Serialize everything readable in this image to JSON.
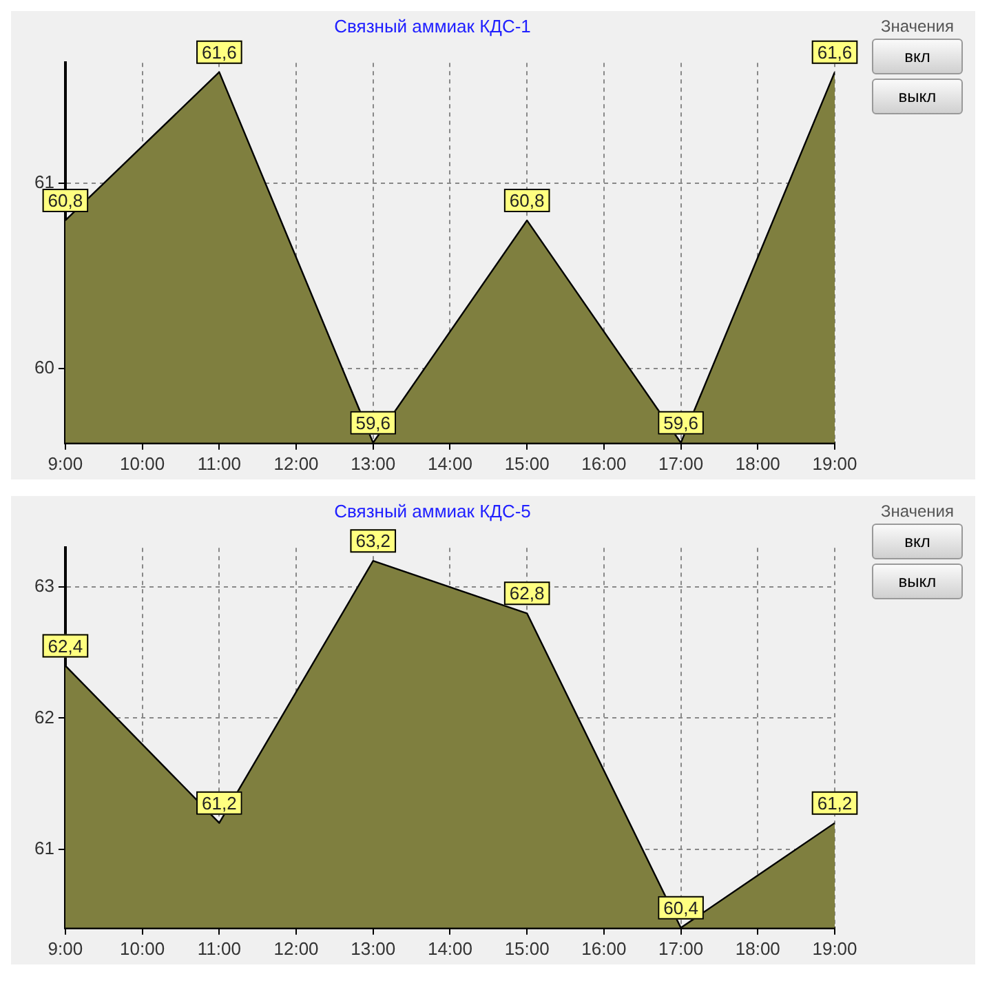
{
  "chart_data": [
    {
      "type": "area",
      "title": "Связный аммиак КДС-1",
      "x": [
        9,
        11,
        13,
        15,
        17,
        19
      ],
      "xlim": [
        9,
        19
      ],
      "xticks": [
        {
          "value": 9,
          "label": "9:00"
        },
        {
          "value": 10,
          "label": "10:00"
        },
        {
          "value": 11,
          "label": "11:00"
        },
        {
          "value": 12,
          "label": "12:00"
        },
        {
          "value": 13,
          "label": "13:00"
        },
        {
          "value": 14,
          "label": "14:00"
        },
        {
          "value": 15,
          "label": "15:00"
        },
        {
          "value": 16,
          "label": "16:00"
        },
        {
          "value": 17,
          "label": "17:00"
        },
        {
          "value": 18,
          "label": "18:00"
        },
        {
          "value": 19,
          "label": "19:00"
        }
      ],
      "ylim": [
        59.6,
        61.65
      ],
      "yticks": [
        60,
        61
      ],
      "grid": true,
      "legend": false,
      "marker": "none",
      "series": [
        {
          "color": "#7f7f3f",
          "values": [
            60.8,
            61.6,
            59.6,
            60.8,
            59.6,
            61.6
          ],
          "value_labels": [
            "60,8",
            "61,6",
            "59,6",
            "60,8",
            "59,6",
            "61,6"
          ]
        }
      ],
      "annotations": [
        "Значения",
        "вкл",
        "выкл"
      ]
    },
    {
      "type": "area",
      "title": "Связный аммиак КДС-5",
      "x": [
        9,
        11,
        13,
        15,
        17,
        19
      ],
      "xlim": [
        9,
        19
      ],
      "xticks": [
        {
          "value": 9,
          "label": "9:00"
        },
        {
          "value": 10,
          "label": "10:00"
        },
        {
          "value": 11,
          "label": "11:00"
        },
        {
          "value": 12,
          "label": "12:00"
        },
        {
          "value": 13,
          "label": "13:00"
        },
        {
          "value": 14,
          "label": "14:00"
        },
        {
          "value": 15,
          "label": "15:00"
        },
        {
          "value": 16,
          "label": "16:00"
        },
        {
          "value": 17,
          "label": "17:00"
        },
        {
          "value": 18,
          "label": "18:00"
        },
        {
          "value": 19,
          "label": "19:00"
        }
      ],
      "ylim": [
        60.4,
        63.3
      ],
      "yticks": [
        61,
        62,
        63
      ],
      "grid": true,
      "legend": false,
      "marker": "none",
      "series": [
        {
          "color": "#7f7f3f",
          "values": [
            62.4,
            61.2,
            63.2,
            62.8,
            60.4,
            61.2
          ],
          "value_labels": [
            "62,4",
            "61,2",
            "63,2",
            "62,8",
            "60,4",
            "61,2"
          ]
        }
      ],
      "annotations": [
        "Значения",
        "вкл",
        "выкл"
      ]
    }
  ]
}
